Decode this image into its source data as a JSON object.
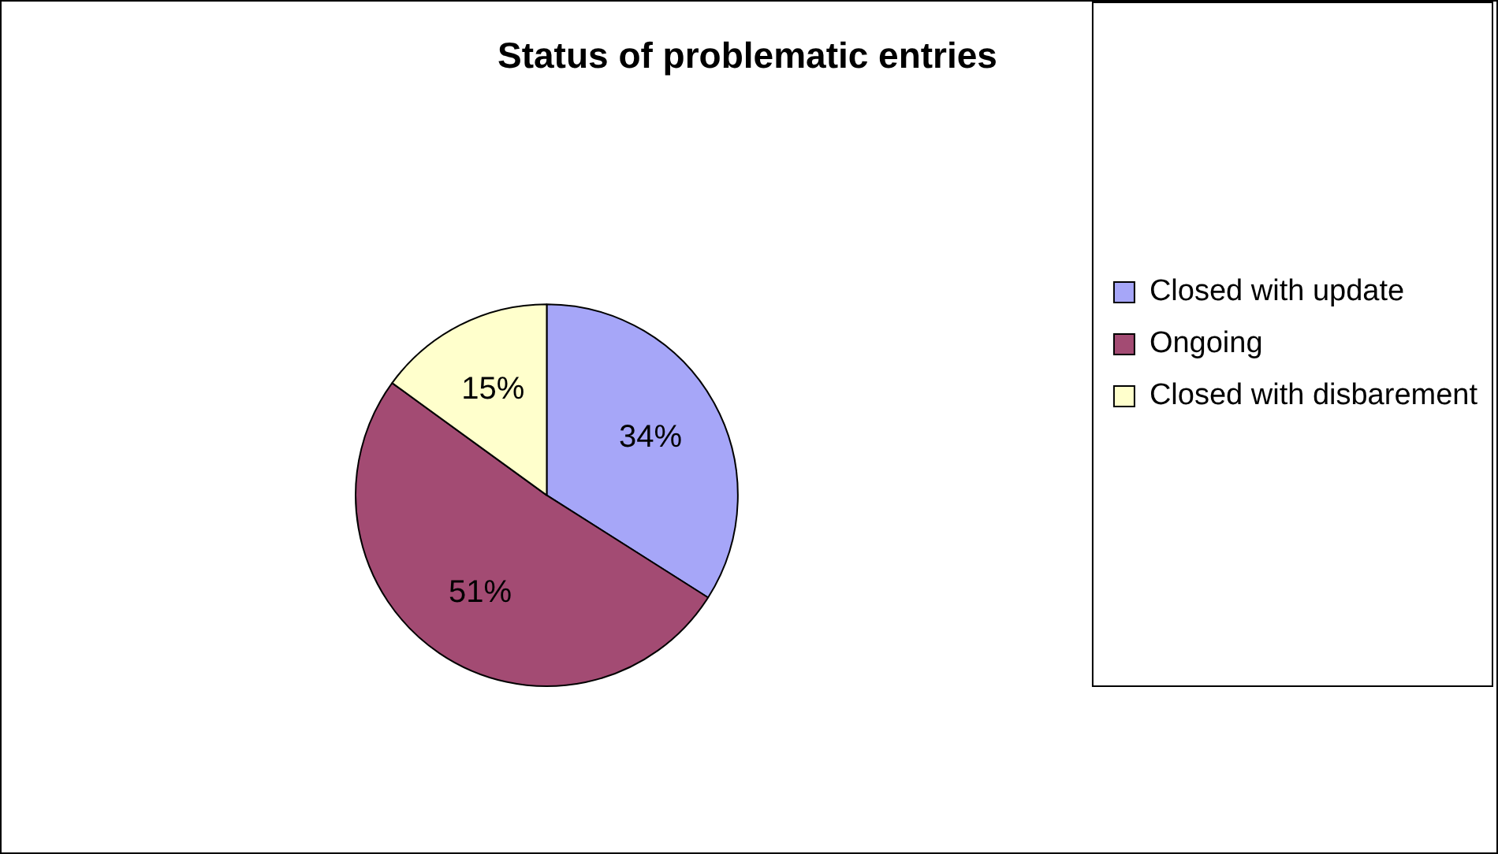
{
  "chart_data": {
    "type": "pie",
    "title": "Status of problematic entries",
    "categories": [
      "Closed with update",
      "Ongoing",
      "Closed with disbarement"
    ],
    "values": [
      34,
      51,
      15
    ],
    "colors": [
      "#a6a6f8",
      "#a34b73",
      "#ffffcc"
    ],
    "value_labels": [
      "34%",
      "51%",
      "15%"
    ],
    "legend": "right"
  }
}
